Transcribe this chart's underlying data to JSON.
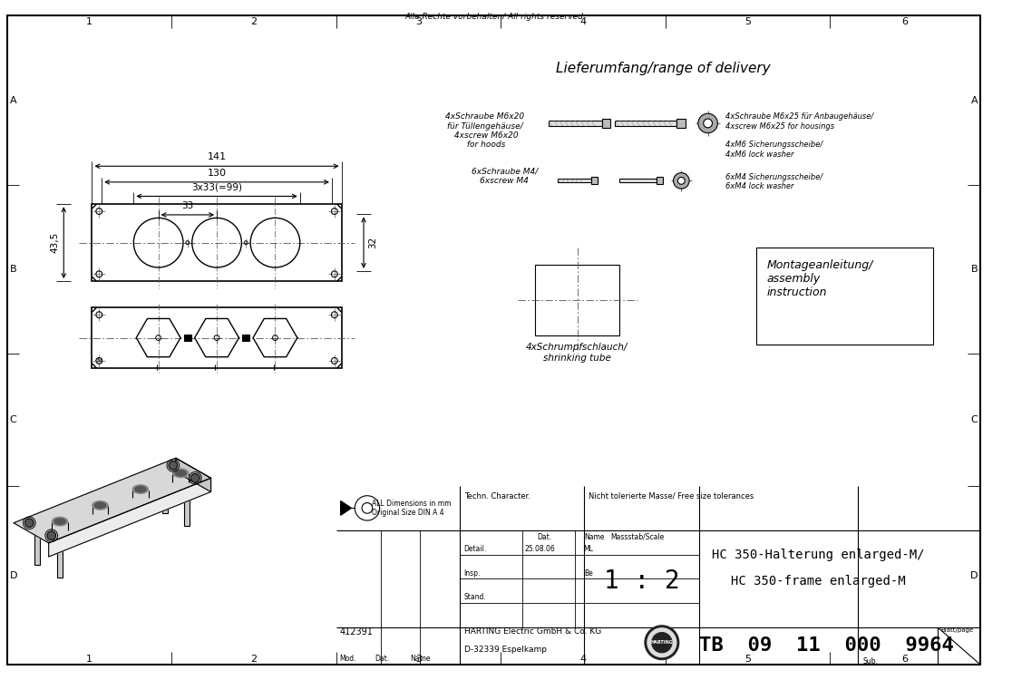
{
  "bg_color": "#ffffff",
  "line_color": "#000000",
  "title_top": "Alle Rechte vorbehalten/ All rights reserved",
  "dim_141": "141",
  "dim_130": "130",
  "dim_3x33": "3x33(=99)",
  "dim_33": "33",
  "dim_43_5": "43,5",
  "dim_32": "32",
  "delivery_title": "Lieferumfang/range of delivery",
  "text_screw_m6x20": "4xSchraube M6x20\nfür Tüllengehäuse/\n 4xscrew M6x20\n for hoods",
  "text_screw_m4": "6xSchraube M4/\n6xscrew M4",
  "text_screw_m6x25": "4xSchraube M6x25 für Anbaugehäuse/\n4xscrew M6x25 for housings",
  "text_lock_m6": "4xM6 Sicherungsscheibe/\n4xM6 lock washer",
  "text_lock_m4": "6xM4 Sicherungsscheibe/\n6xM4 lock washer",
  "text_shrink": "4xSchrumpfschlauch/\nshrinking tube",
  "text_montage": "Montageanleitung/\nassembly\ninstruction",
  "tb_text": "ALL Dimensions in mm\nOriginal Size DIN A 4",
  "techn_char": "Techn. Character.",
  "tolerances": "Nicht tolerierte Masse/ Free size tolerances",
  "massstab": "Massstab/Scale",
  "scale_val": "1 : 2",
  "detail_label": "Detail.",
  "detail_date": "25.08.06",
  "detail_name": "ML",
  "insp_label": "Insp.",
  "insp_name": "Be",
  "stand_label": "Stand.",
  "part_number": "412391",
  "mod_label": "Mod.",
  "dat_label": "Dat.",
  "name_label": "Name",
  "company": "HARTING Electric GmbH & Co. KG",
  "address": "D-32339 Espelkamp",
  "tb_num": "TB  09  11  000  9964",
  "blatt_label": "Blatt/page",
  "sub_label": "Sub.",
  "title_main1": "HC 350-Halterung enlarged-M/",
  "title_main2": "HC 350-frame enlarged-M"
}
